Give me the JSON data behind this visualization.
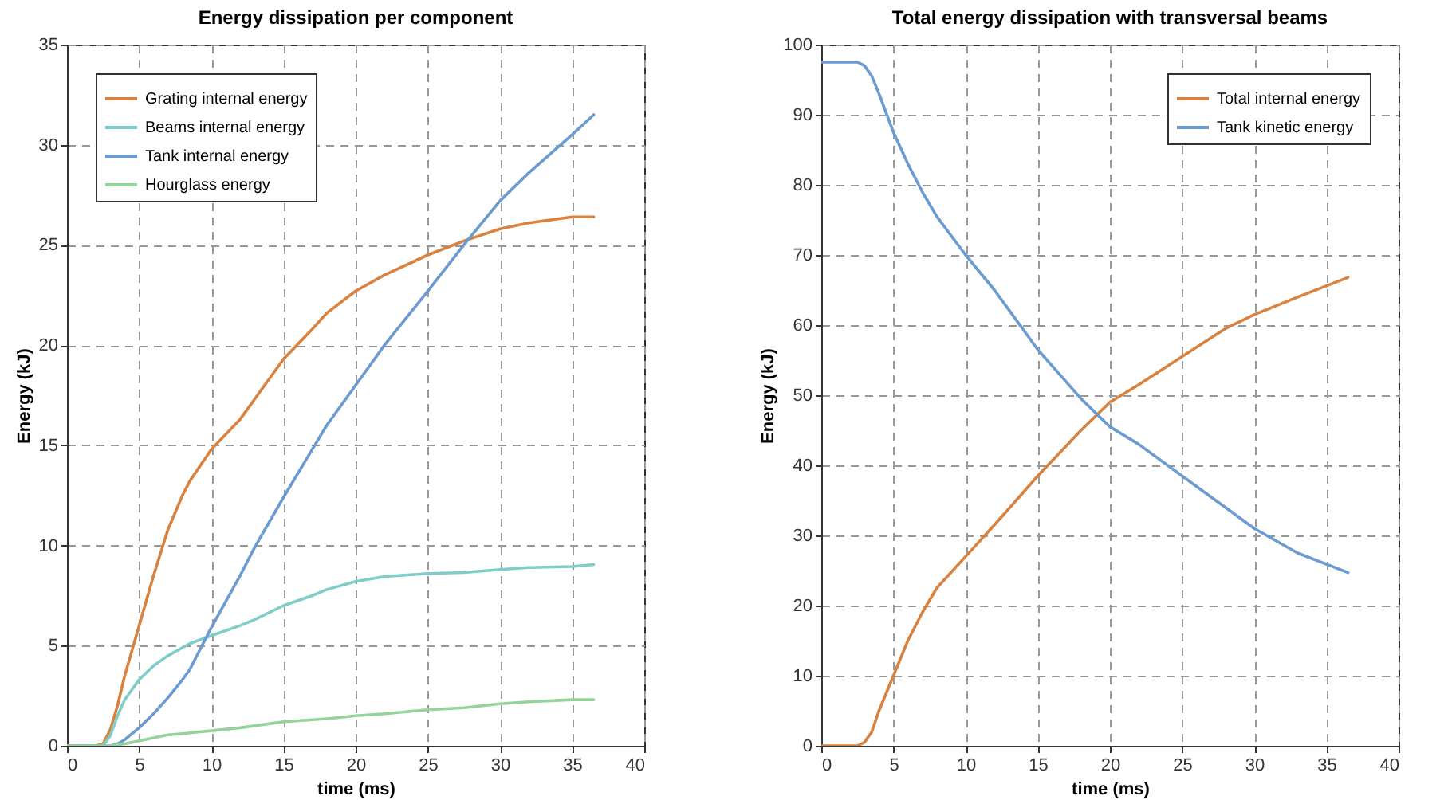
{
  "chart_data": [
    {
      "type": "line",
      "title": "Energy dissipation per component",
      "xlabel": "time (ms)",
      "ylabel": "Energy (kJ)",
      "x": [
        0,
        2,
        2.5,
        3,
        3.5,
        4,
        5,
        6,
        7,
        8,
        8.5,
        10,
        12,
        13,
        15,
        17,
        18,
        20,
        22,
        25,
        27.5,
        30,
        32,
        35,
        36.5
      ],
      "series": [
        {
          "name": "Grating internal energy",
          "color": "#d9823f",
          "values": [
            0,
            0,
            0.1,
            0.8,
            2,
            3.5,
            6,
            8.5,
            10.8,
            12.5,
            13.2,
            14.8,
            16.3,
            17.3,
            19.3,
            20.8,
            21.6,
            22.7,
            23.5,
            24.5,
            25.2,
            25.8,
            26.1,
            26.4,
            26.4
          ]
        },
        {
          "name": "Beams internal energy",
          "color": "#7fcdc8",
          "values": [
            0,
            0,
            0,
            0.5,
            1.5,
            2.3,
            3.3,
            4,
            4.5,
            4.9,
            5.1,
            5.5,
            6,
            6.3,
            7,
            7.5,
            7.8,
            8.2,
            8.45,
            8.6,
            8.65,
            8.8,
            8.9,
            8.95,
            9.05
          ]
        },
        {
          "name": "Tank internal energy",
          "color": "#6b9bd0",
          "values": [
            0,
            0,
            0,
            0,
            0.1,
            0.3,
            0.9,
            1.6,
            2.4,
            3.3,
            3.8,
            5.9,
            8.5,
            9.9,
            12.4,
            14.8,
            16,
            18,
            20,
            22.7,
            25,
            27.2,
            28.6,
            30.5,
            31.5
          ]
        },
        {
          "name": "Hourglass energy",
          "color": "#94d39a",
          "values": [
            0,
            0,
            0,
            0,
            0.05,
            0.1,
            0.25,
            0.4,
            0.55,
            0.6,
            0.65,
            0.75,
            0.9,
            1,
            1.2,
            1.3,
            1.35,
            1.5,
            1.6,
            1.8,
            1.9,
            2.1,
            2.2,
            2.3,
            2.3
          ]
        }
      ],
      "xlim": [
        0,
        40
      ],
      "xticks": [
        0,
        5,
        10,
        15,
        20,
        25,
        30,
        35,
        40
      ],
      "ylim": [
        0,
        35
      ],
      "yticks": [
        0,
        5,
        10,
        15,
        20,
        25,
        30,
        35
      ],
      "grid": true,
      "legend": "top left",
      "line_style": "solid"
    },
    {
      "type": "line",
      "title": "Total energy dissipation with transversal beams",
      "xlabel": "time (ms)",
      "ylabel": "Energy (kJ)",
      "x": [
        0,
        2.5,
        3,
        3.5,
        4,
        5,
        6,
        7,
        8,
        10,
        12,
        15,
        18,
        20,
        22,
        25,
        28,
        30,
        33,
        36.5
      ],
      "series": [
        {
          "name": "Total internal energy",
          "color": "#d9823f",
          "values": [
            0,
            0,
            0.5,
            2,
            5,
            10,
            15,
            19,
            22.5,
            27,
            31.5,
            38.5,
            45,
            49,
            51.5,
            55.5,
            59.5,
            61.5,
            64,
            66.8
          ]
        },
        {
          "name": "Tank kinetic energy",
          "color": "#6b9bd0",
          "values": [
            97.5,
            97.5,
            97,
            95.5,
            93,
            87.5,
            83,
            79,
            75.5,
            70,
            65,
            56.5,
            49.5,
            45.5,
            43,
            38.5,
            34,
            31,
            27.5,
            24.7
          ]
        }
      ],
      "xlim": [
        0,
        40
      ],
      "xticks": [
        0,
        5,
        10,
        15,
        20,
        25,
        30,
        35,
        40
      ],
      "ylim": [
        0,
        100
      ],
      "yticks": [
        0,
        10,
        20,
        30,
        40,
        50,
        60,
        70,
        80,
        90,
        100
      ],
      "grid": true,
      "legend": "top right",
      "line_style": "solid"
    }
  ]
}
